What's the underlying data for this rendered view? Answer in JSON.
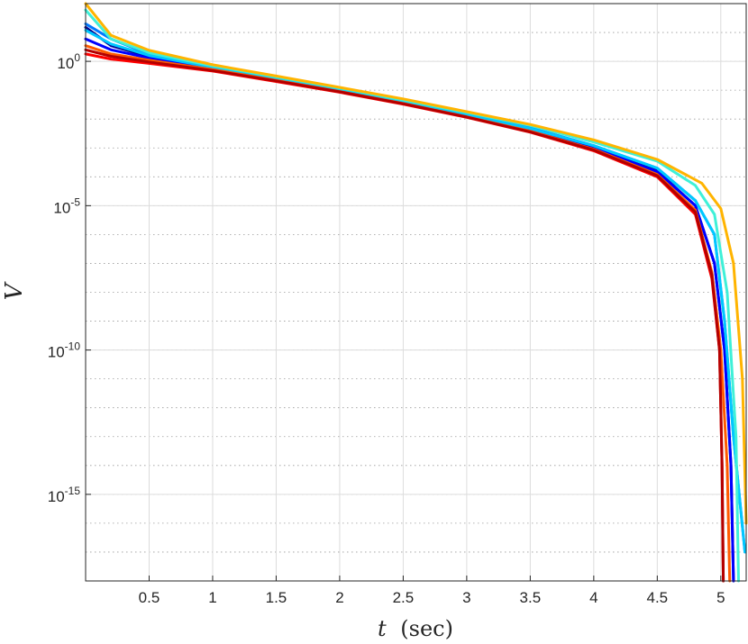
{
  "chart_data": {
    "type": "line",
    "title": "",
    "xlabel": "t (sec)",
    "xlabel_var": "t",
    "xlabel_unit": "(sec)",
    "ylabel": "V",
    "x_scale": "linear",
    "y_scale": "log",
    "xlim": [
      0,
      5.2
    ],
    "ylim": [
      1e-18,
      100.0
    ],
    "x_ticks": [
      0.5,
      1,
      1.5,
      2,
      2.5,
      3,
      3.5,
      4,
      4.5,
      5
    ],
    "x_tick_labels": [
      "0.5",
      "1",
      "1.5",
      "2",
      "2.5",
      "3",
      "3.5",
      "4",
      "4.5",
      "5"
    ],
    "y_ticks": [
      {
        "value": 1,
        "base": "10",
        "exp": "0"
      },
      {
        "value": 1e-05,
        "base": "10",
        "exp": "-5"
      },
      {
        "value": 1e-10,
        "base": "10",
        "exp": "-10"
      },
      {
        "value": 1e-15,
        "base": "10",
        "exp": "-15"
      }
    ],
    "grid": true,
    "minor_grid": true,
    "legend": "none",
    "series": [
      {
        "color": "#00008f",
        "x": [
          0,
          0.2,
          0.5,
          1,
          1.5,
          2,
          2.5,
          3,
          3.5,
          4,
          4.5,
          4.8,
          4.95,
          5.03,
          5.08,
          5.1
        ],
        "y": [
          15,
          3.5,
          1.5,
          0.6,
          0.25,
          0.1,
          0.04,
          0.014,
          0.0045,
          0.0011,
          0.00016,
          1e-05,
          1e-07,
          1e-10,
          1e-14,
          1e-18
        ]
      },
      {
        "color": "#0000ff",
        "x": [
          0,
          0.2,
          0.5,
          1,
          1.5,
          2,
          2.5,
          3,
          3.5,
          4,
          4.5,
          4.8,
          4.95,
          5.03,
          5.08,
          5.1
        ],
        "y": [
          6,
          2.5,
          1.3,
          0.56,
          0.24,
          0.1,
          0.038,
          0.013,
          0.0043,
          0.001,
          0.00015,
          1e-05,
          1e-07,
          1e-10,
          1e-14,
          1e-18
        ]
      },
      {
        "color": "#0078ff",
        "x": [
          0,
          0.2,
          0.5,
          1,
          1.5,
          2,
          2.5,
          3,
          3.5,
          4,
          4.5,
          4.8,
          4.95,
          5.03,
          5.1,
          5.19
        ],
        "y": [
          20,
          6,
          1.8,
          0.65,
          0.27,
          0.11,
          0.042,
          0.015,
          0.005,
          0.0012,
          0.0002,
          1.5e-05,
          1e-06,
          1e-09,
          1e-13,
          1e-17
        ]
      },
      {
        "color": "#00c8ff",
        "x": [
          0,
          0.2,
          0.5,
          1,
          1.5,
          2,
          2.5,
          3,
          3.5,
          4,
          4.5,
          4.8,
          4.95,
          5.03,
          5.1,
          5.19
        ],
        "y": [
          12,
          4,
          1.6,
          0.62,
          0.26,
          0.105,
          0.04,
          0.014,
          0.0047,
          0.0012,
          0.0002,
          1.5e-05,
          1e-06,
          1e-09,
          1e-13,
          1e-17
        ]
      },
      {
        "color": "#3ff0d8",
        "x": [
          0,
          0.2,
          0.5,
          1,
          1.5,
          2,
          2.5,
          3,
          3.5,
          4,
          4.5,
          4.8,
          4.95,
          5.05,
          5.12,
          5.14
        ],
        "y": [
          60,
          6,
          2,
          0.7,
          0.29,
          0.12,
          0.046,
          0.017,
          0.006,
          0.0016,
          0.00035,
          5e-05,
          5e-06,
          1e-08,
          1e-13,
          1e-18
        ]
      },
      {
        "color": "#ffb400",
        "x": [
          0,
          0.2,
          0.5,
          1,
          1.5,
          2,
          2.5,
          3,
          3.5,
          4,
          4.5,
          4.85,
          5.0,
          5.1,
          5.17,
          5.2
        ],
        "y": [
          100,
          8,
          2.4,
          0.76,
          0.31,
          0.125,
          0.05,
          0.018,
          0.0065,
          0.0019,
          0.0004,
          6e-05,
          8e-06,
          1e-07,
          1e-11,
          1e-16
        ]
      },
      {
        "color": "#ff5a00",
        "x": [
          0,
          0.2,
          0.5,
          1,
          1.5,
          2,
          2.5,
          3,
          3.5,
          4,
          4.5,
          4.8,
          4.93,
          5.0,
          5.05,
          5.07
        ],
        "y": [
          3.5,
          1.8,
          1.1,
          0.52,
          0.22,
          0.09,
          0.035,
          0.012,
          0.0038,
          0.0009,
          0.00012,
          7e-06,
          5e-08,
          1e-10,
          1e-14,
          1e-18
        ]
      },
      {
        "color": "#ff0000",
        "x": [
          0,
          0.2,
          0.5,
          1,
          1.5,
          2,
          2.5,
          3,
          3.5,
          4,
          4.5,
          4.8,
          4.93,
          4.99,
          5.01,
          5.02
        ],
        "y": [
          1.8,
          1.2,
          0.85,
          0.46,
          0.2,
          0.085,
          0.033,
          0.0115,
          0.0035,
          0.0008,
          0.0001,
          5e-06,
          3e-08,
          1e-10,
          1e-14,
          1e-18
        ]
      },
      {
        "color": "#b40000",
        "x": [
          0,
          0.2,
          0.5,
          1,
          1.5,
          2,
          2.5,
          3,
          3.5,
          4,
          4.5,
          4.8,
          4.93,
          4.99,
          5.01,
          5.02
        ],
        "y": [
          2.5,
          1.5,
          0.95,
          0.48,
          0.21,
          0.088,
          0.034,
          0.0118,
          0.0036,
          0.00085,
          0.00011,
          6e-06,
          4e-08,
          1e-10,
          1e-14,
          1e-18
        ]
      }
    ]
  }
}
